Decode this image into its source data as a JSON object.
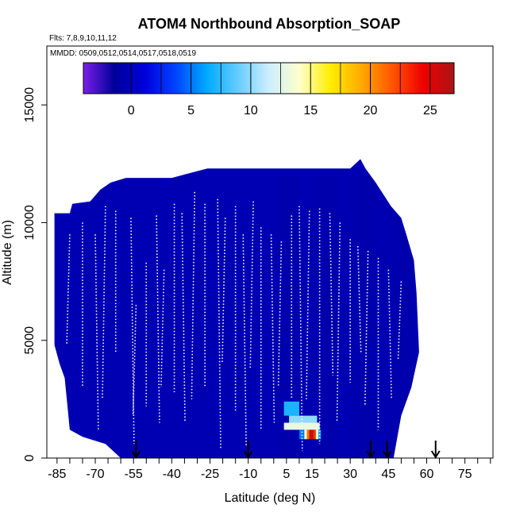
{
  "chart_data": {
    "type": "heatmap",
    "title": "ATOM4 Northbound Absorption_SOAP",
    "subtitle_flights": "Flts: 7,8,9,10,11,12",
    "subtitle_dates": "MMDD: 0509,0512,0514,0517,0518,0519",
    "xlabel": "Latitude (deg N)",
    "ylabel": "Altitude (m)",
    "xlim": [
      -89,
      86
    ],
    "ylim": [
      0,
      17500
    ],
    "x_ticks": [
      -85,
      -70,
      -55,
      -40,
      -25,
      -10,
      5,
      15,
      30,
      45,
      60,
      75
    ],
    "y_ticks": [
      0,
      5000,
      10000,
      15000
    ],
    "colorbar": {
      "min": -4,
      "max": 27,
      "ticks": [
        0,
        5,
        10,
        15,
        20,
        25
      ],
      "colors": [
        "#7a1fe8",
        "#00009a",
        "#0000dd",
        "#0044ff",
        "#00aaff",
        "#66ccff",
        "#cceeff",
        "#ffffcc",
        "#ffee00",
        "#ffaa00",
        "#ff5500",
        "#ee0000",
        "#aa1515"
      ]
    },
    "coverage_profile": [
      {
        "lat": -86,
        "top": 10400
      },
      {
        "lat": -80,
        "top": 10400
      },
      {
        "lat": -79,
        "top": 10800
      },
      {
        "lat": -72,
        "top": 10900
      },
      {
        "lat": -68,
        "top": 11400
      },
      {
        "lat": -64,
        "top": 11700
      },
      {
        "lat": -58,
        "top": 11900
      },
      {
        "lat": -40,
        "top": 11900
      },
      {
        "lat": -33,
        "top": 12100
      },
      {
        "lat": -26,
        "top": 12300
      },
      {
        "lat": -10,
        "top": 12300
      },
      {
        "lat": 10,
        "top": 12300
      },
      {
        "lat": 30,
        "top": 12300
      },
      {
        "lat": 34,
        "top": 12700
      },
      {
        "lat": 36,
        "top": 12300
      },
      {
        "lat": 40,
        "top": 11700
      },
      {
        "lat": 46,
        "top": 10700
      },
      {
        "lat": 50,
        "top": 10200
      },
      {
        "lat": 52,
        "top": 9500
      },
      {
        "lat": 55,
        "top": 8400
      },
      {
        "lat": 56,
        "top": 7000
      },
      {
        "lat": 57,
        "top": 4500
      }
    ],
    "coverage_bottom": [
      {
        "lat": -86,
        "bottom": 4800
      },
      {
        "lat": -84,
        "bottom": 4000
      },
      {
        "lat": -82,
        "bottom": 3400
      },
      {
        "lat": -80,
        "bottom": 1200
      },
      {
        "lat": -75,
        "bottom": 900
      },
      {
        "lat": -66,
        "bottom": 600
      },
      {
        "lat": -60,
        "bottom": 0
      },
      {
        "lat": 47,
        "bottom": 0
      },
      {
        "lat": 50,
        "bottom": 1800
      },
      {
        "lat": 54,
        "bottom": 3000
      },
      {
        "lat": 57,
        "bottom": 4500
      }
    ],
    "background_value": -0.5,
    "cells": [
      {
        "lat": 4,
        "lat2": 10,
        "alt": 1800,
        "alt2": 2400,
        "value": 7
      },
      {
        "lat": 6,
        "lat2": 17,
        "alt": 1500,
        "alt2": 1800,
        "value": 10
      },
      {
        "lat": 4,
        "lat2": 18,
        "alt": 1200,
        "alt2": 1500,
        "value": 13
      },
      {
        "lat": 10,
        "lat2": 12,
        "alt": 800,
        "alt2": 1200,
        "value": 5
      },
      {
        "lat": 12,
        "lat2": 13,
        "alt": 800,
        "alt2": 1200,
        "value": 14
      },
      {
        "lat": 13,
        "lat2": 14,
        "alt": 800,
        "alt2": 1200,
        "value": 21
      },
      {
        "lat": 14,
        "lat2": 15.5,
        "alt": 800,
        "alt2": 1200,
        "value": 26
      },
      {
        "lat": 15.5,
        "lat2": 16.5,
        "alt": 800,
        "alt2": 1200,
        "value": 23
      },
      {
        "lat": 16.5,
        "lat2": 17.5,
        "alt": 800,
        "alt2": 1200,
        "value": 14
      },
      {
        "lat": 17.5,
        "lat2": 18.5,
        "alt": 800,
        "alt2": 1200,
        "value": 6
      }
    ],
    "profiles": [
      {
        "lat": -80,
        "alt_start": 9500,
        "alt_end": 4800
      },
      {
        "lat": -75,
        "alt_start": 10000,
        "alt_end": 3000
      },
      {
        "lat": -70,
        "alt_start": 9500,
        "alt_end": 1200
      },
      {
        "lat": -66,
        "alt_start": 10700,
        "alt_end": 2500
      },
      {
        "lat": -62,
        "alt_start": 10500,
        "alt_end": 4500
      },
      {
        "lat": -56,
        "alt_start": 10200,
        "alt_end": 600
      },
      {
        "lat": -54,
        "alt_start": 6500,
        "alt_end": 1800
      },
      {
        "lat": -50,
        "alt_start": 8300,
        "alt_end": 2200
      },
      {
        "lat": -46,
        "alt_start": 10300,
        "alt_end": 1500
      },
      {
        "lat": -43,
        "alt_start": 8000,
        "alt_end": 3000
      },
      {
        "lat": -39,
        "alt_start": 10800,
        "alt_end": 2800
      },
      {
        "lat": -36,
        "alt_start": 10400,
        "alt_end": 1500
      },
      {
        "lat": -31,
        "alt_start": 11300,
        "alt_end": 2500
      },
      {
        "lat": -27,
        "alt_start": 10800,
        "alt_end": 3000
      },
      {
        "lat": -22,
        "alt_start": 11000,
        "alt_end": 400
      },
      {
        "lat": -19,
        "alt_start": 10200,
        "alt_end": 4000
      },
      {
        "lat": -15,
        "alt_start": 10700,
        "alt_end": 2000
      },
      {
        "lat": -12,
        "alt_start": 9500,
        "alt_end": 500
      },
      {
        "lat": -8,
        "alt_start": 10900,
        "alt_end": 3800
      },
      {
        "lat": -5,
        "alt_start": 9800,
        "alt_end": 1200
      },
      {
        "lat": -1,
        "alt_start": 9500,
        "alt_end": 1500
      },
      {
        "lat": 3,
        "alt_start": 9200,
        "alt_end": 3000
      },
      {
        "lat": 7,
        "alt_start": 10300,
        "alt_end": 2500
      },
      {
        "lat": 10,
        "alt_start": 10700,
        "alt_end": 300
      },
      {
        "lat": 14,
        "alt_start": 10500,
        "alt_end": 2500
      },
      {
        "lat": 18,
        "alt_start": 10600,
        "alt_end": 600
      },
      {
        "lat": 22,
        "alt_start": 10400,
        "alt_end": 3500
      },
      {
        "lat": 26,
        "alt_start": 10000,
        "alt_end": 1500
      },
      {
        "lat": 30,
        "alt_start": 9300,
        "alt_end": 3200
      },
      {
        "lat": 33,
        "alt_start": 9000,
        "alt_end": 4500
      },
      {
        "lat": 37,
        "alt_start": 8800,
        "alt_end": 2200
      },
      {
        "lat": 41,
        "alt_start": 8500,
        "alt_end": 1200
      },
      {
        "lat": 45,
        "alt_start": 8000,
        "alt_end": 2500
      },
      {
        "lat": 50,
        "alt_start": 7500,
        "alt_end": 4200
      }
    ],
    "arrows_lat": [
      -54,
      -10,
      38,
      44.5,
      63.5
    ]
  }
}
